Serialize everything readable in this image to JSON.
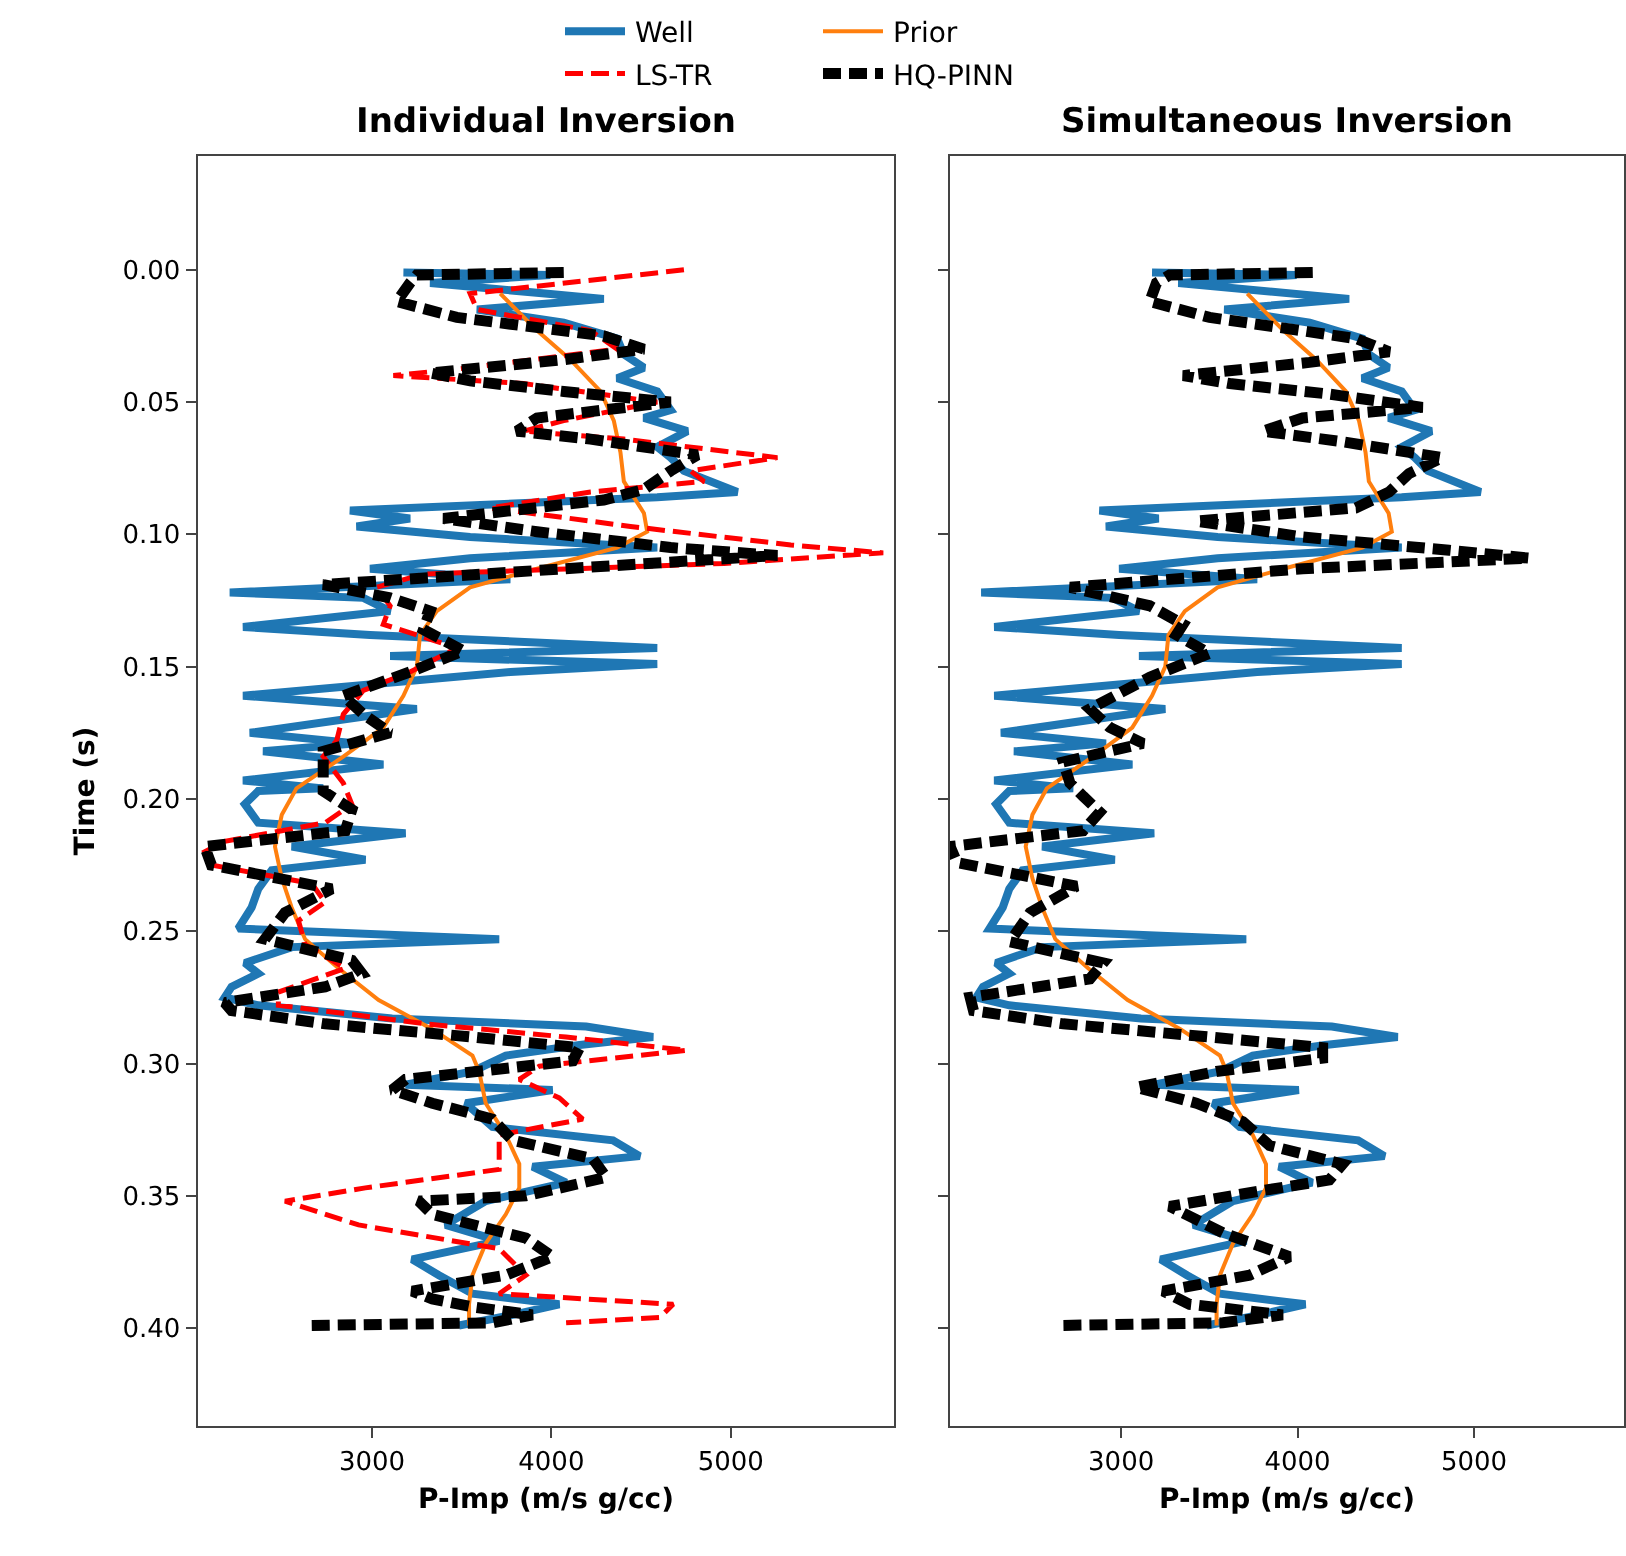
{
  "chart_data": [
    {
      "type": "line",
      "title": "Individual Inversion",
      "xlabel": "P-Imp (m/s g/cc)",
      "ylabel": "Time (s)",
      "legend": "top",
      "xlim": [
        2030,
        5910
      ],
      "xticks": [
        3000,
        4000,
        5000
      ],
      "ylim": [
        0.437,
        -0.043
      ],
      "yticks": [
        {
          "value": 0,
          "label": "0.00"
        },
        {
          "value": 0.05,
          "label": "0.05"
        },
        {
          "value": 0.1,
          "label": "0.10"
        },
        {
          "value": 0.15,
          "label": "0.15"
        },
        {
          "value": 0.2,
          "label": "0.20"
        },
        {
          "value": 0.25,
          "label": "0.25"
        },
        {
          "value": 0.3,
          "label": "0.30"
        },
        {
          "value": 0.35,
          "label": "0.35"
        },
        {
          "value": 0.4,
          "label": "0.40"
        }
      ],
      "series": [
        {
          "name": "Well",
          "color": "#1f77b4",
          "line_style": "solid",
          "x": [
            3175,
            3994,
            3324,
            4292,
            3585,
            4069,
            4367,
            4404,
            4516,
            4367,
            4590,
            4665,
            4516,
            4758,
            4590,
            4665,
            4739,
            5037,
            4590,
            2877,
            3212,
            2914,
            3547,
            4590,
            3547,
            2989,
            3771,
            2207,
            2952,
            3101,
            2281,
            2989,
            4590,
            3101,
            4590,
            3771,
            2281,
            3250,
            2319,
            2914,
            2393,
            3063,
            2281,
            2728,
            2366,
            2291,
            2366,
            3187,
            2553,
            2963,
            2441,
            2366,
            2329,
            2254,
            3709,
            2553,
            2291,
            2366,
            2217,
            2179,
            2366,
            3112,
            4194,
            4567,
            4157,
            3746,
            3560,
            3187,
            4007,
            3522,
            3672,
            4343,
            4492,
            3895,
            4082,
            3634,
            3410,
            3709,
            3224,
            3373,
            3560,
            4044,
            3784,
            3485
          ],
          "values": [
            0.001,
            0.002,
            0.005,
            0.011,
            0.015,
            0.02,
            0.026,
            0.032,
            0.037,
            0.041,
            0.046,
            0.053,
            0.056,
            0.061,
            0.067,
            0.071,
            0.076,
            0.084,
            0.086,
            0.091,
            0.094,
            0.097,
            0.101,
            0.105,
            0.109,
            0.113,
            0.117,
            0.122,
            0.124,
            0.129,
            0.135,
            0.138,
            0.143,
            0.146,
            0.149,
            0.152,
            0.161,
            0.166,
            0.175,
            0.179,
            0.182,
            0.187,
            0.193,
            0.196,
            0.197,
            0.202,
            0.209,
            0.213,
            0.218,
            0.223,
            0.227,
            0.234,
            0.241,
            0.249,
            0.253,
            0.256,
            0.262,
            0.266,
            0.271,
            0.275,
            0.278,
            0.283,
            0.286,
            0.29,
            0.293,
            0.297,
            0.303,
            0.308,
            0.31,
            0.315,
            0.324,
            0.329,
            0.335,
            0.339,
            0.345,
            0.352,
            0.361,
            0.367,
            0.374,
            0.38,
            0.387,
            0.391,
            0.395,
            0.399
          ]
        },
        {
          "name": "Prior",
          "color": "#ff7f0e",
          "line_style": "solid",
          "x": [
            3715,
            3920,
            4106,
            4274,
            4348,
            4385,
            4404,
            4516,
            4534,
            4367,
            3920,
            3547,
            3361,
            3268,
            3250,
            3175,
            3063,
            2840,
            2579,
            2497,
            2459,
            2497,
            2552,
            2627,
            2813,
            3037,
            3336,
            3560,
            3597,
            3634,
            3746,
            3821,
            3821,
            3746,
            3634,
            3560,
            3541,
            3541
          ],
          "values": [
            0.009,
            0.023,
            0.034,
            0.046,
            0.057,
            0.069,
            0.08,
            0.092,
            0.099,
            0.105,
            0.113,
            0.12,
            0.129,
            0.138,
            0.15,
            0.161,
            0.173,
            0.184,
            0.196,
            0.206,
            0.218,
            0.23,
            0.241,
            0.253,
            0.264,
            0.276,
            0.287,
            0.297,
            0.303,
            0.315,
            0.327,
            0.338,
            0.347,
            0.357,
            0.368,
            0.38,
            0.391,
            0.399
          ]
        },
        {
          "name": "LS-TR",
          "color": "#ff0000",
          "line_style": "dashed",
          "x": [
            4739,
            3547,
            3585,
            4218,
            4367,
            3547,
            3119,
            3845,
            4590,
            4069,
            3845,
            4404,
            5260,
            4776,
            4851,
            4218,
            3659,
            4441,
            5335,
            5850,
            4963,
            3287,
            3026,
            3101,
            3063,
            3250,
            3473,
            3212,
            2952,
            2840,
            2803,
            2728,
            2840,
            2888,
            2739,
            2179,
            2067,
            2105,
            2664,
            2739,
            2590,
            2627,
            2851,
            2478,
            2478,
            3298,
            4082,
            4753,
            3933,
            3821,
            4044,
            4175,
            3709,
            3709,
            3709,
            2963,
            2515,
            2925,
            3709,
            3858,
            3709,
            4679,
            4604,
            4082
          ],
          "values": [
            0.0,
            0.009,
            0.015,
            0.023,
            0.03,
            0.037,
            0.04,
            0.043,
            0.05,
            0.057,
            0.061,
            0.064,
            0.071,
            0.076,
            0.08,
            0.084,
            0.09,
            0.097,
            0.104,
            0.107,
            0.111,
            0.115,
            0.12,
            0.127,
            0.134,
            0.138,
            0.143,
            0.152,
            0.159,
            0.168,
            0.178,
            0.184,
            0.194,
            0.202,
            0.209,
            0.216,
            0.22,
            0.225,
            0.232,
            0.239,
            0.246,
            0.255,
            0.264,
            0.273,
            0.278,
            0.285,
            0.29,
            0.295,
            0.301,
            0.306,
            0.313,
            0.321,
            0.327,
            0.334,
            0.34,
            0.347,
            0.352,
            0.361,
            0.37,
            0.38,
            0.387,
            0.391,
            0.396,
            0.398
          ]
        },
        {
          "name": "HQ-PINN",
          "color": "#000000",
          "line_style": "dashed",
          "x": [
            4069,
            3250,
            3212,
            3138,
            3473,
            4292,
            4516,
            4069,
            3324,
            3547,
            4069,
            4665,
            3920,
            3808,
            4218,
            4814,
            4665,
            4516,
            4292,
            3398,
            3920,
            4665,
            5260,
            4069,
            2728,
            3101,
            3324,
            3287,
            3510,
            3212,
            2840,
            2952,
            3101,
            2728,
            2728,
            2728,
            2888,
            2851,
            2067,
            2105,
            2776,
            2515,
            2403,
            2888,
            2944,
            2739,
            2179,
            2217,
            2739,
            3560,
            4157,
            4119,
            3187,
            3112,
            3336,
            3671,
            3783,
            4231,
            4306,
            3858,
            3261,
            3336,
            3858,
            4007,
            3746,
            3224,
            3336,
            3560,
            3895,
            3671,
            2664
          ],
          "values": [
            0.001,
            0.002,
            0.005,
            0.012,
            0.018,
            0.025,
            0.03,
            0.034,
            0.039,
            0.042,
            0.046,
            0.05,
            0.056,
            0.061,
            0.064,
            0.07,
            0.076,
            0.083,
            0.087,
            0.094,
            0.099,
            0.105,
            0.108,
            0.113,
            0.119,
            0.124,
            0.129,
            0.136,
            0.144,
            0.152,
            0.161,
            0.168,
            0.175,
            0.182,
            0.189,
            0.197,
            0.204,
            0.212,
            0.218,
            0.225,
            0.234,
            0.243,
            0.253,
            0.261,
            0.266,
            0.271,
            0.277,
            0.28,
            0.285,
            0.29,
            0.294,
            0.299,
            0.306,
            0.31,
            0.315,
            0.321,
            0.329,
            0.336,
            0.343,
            0.35,
            0.352,
            0.357,
            0.366,
            0.373,
            0.38,
            0.386,
            0.389,
            0.392,
            0.395,
            0.398,
            0.399
          ]
        }
      ]
    },
    {
      "type": "line",
      "title": "Simultaneous Inversion",
      "xlabel": "P-Imp (m/s g/cc)",
      "tick_labels": "x",
      "xlim": [
        2030,
        5850
      ],
      "xticks": [
        3000,
        4000,
        5000
      ],
      "ylim": [
        0.437,
        -0.043
      ],
      "yticks": [
        {
          "value": 0,
          "label": null
        },
        {
          "value": 0.05,
          "label": null
        },
        {
          "value": 0.1,
          "label": null
        },
        {
          "value": 0.15,
          "label": null
        },
        {
          "value": 0.2,
          "label": null
        },
        {
          "value": 0.25,
          "label": null
        },
        {
          "value": 0.3,
          "label": null
        },
        {
          "value": 0.35,
          "label": null
        },
        {
          "value": 0.4,
          "label": null
        }
      ],
      "series": [
        {
          "color": "#1f77b4",
          "line_style": "solid",
          "x": [
            3175,
            3994,
            3324,
            4292,
            3585,
            4069,
            4367,
            4404,
            4516,
            4367,
            4590,
            4665,
            4516,
            4758,
            4590,
            4665,
            4739,
            5037,
            4590,
            2877,
            3212,
            2914,
            3547,
            4590,
            3547,
            2989,
            3771,
            2207,
            2952,
            3101,
            2281,
            2989,
            4590,
            3101,
            4590,
            3771,
            2281,
            3250,
            2319,
            2914,
            2393,
            3063,
            2281,
            2728,
            2366,
            2291,
            2366,
            3187,
            2553,
            2963,
            2441,
            2366,
            2329,
            2254,
            3709,
            2553,
            2291,
            2366,
            2217,
            2179,
            2366,
            3112,
            4194,
            4567,
            4157,
            3746,
            3560,
            3187,
            4007,
            3522,
            3672,
            4343,
            4492,
            3895,
            4082,
            3634,
            3410,
            3709,
            3224,
            3373,
            3560,
            4044,
            3784,
            3485
          ],
          "values": [
            0.001,
            0.002,
            0.005,
            0.011,
            0.015,
            0.02,
            0.026,
            0.032,
            0.037,
            0.041,
            0.046,
            0.053,
            0.056,
            0.061,
            0.067,
            0.071,
            0.076,
            0.084,
            0.086,
            0.091,
            0.094,
            0.097,
            0.101,
            0.105,
            0.109,
            0.113,
            0.117,
            0.122,
            0.124,
            0.129,
            0.135,
            0.138,
            0.143,
            0.146,
            0.149,
            0.152,
            0.161,
            0.166,
            0.175,
            0.179,
            0.182,
            0.187,
            0.193,
            0.196,
            0.197,
            0.202,
            0.209,
            0.213,
            0.218,
            0.223,
            0.227,
            0.234,
            0.241,
            0.249,
            0.253,
            0.256,
            0.262,
            0.266,
            0.271,
            0.275,
            0.278,
            0.283,
            0.286,
            0.29,
            0.293,
            0.297,
            0.303,
            0.308,
            0.31,
            0.315,
            0.324,
            0.329,
            0.335,
            0.339,
            0.345,
            0.352,
            0.361,
            0.367,
            0.374,
            0.38,
            0.387,
            0.391,
            0.395,
            0.399
          ]
        },
        {
          "color": "#ff7f0e",
          "line_style": "solid",
          "x": [
            3715,
            3920,
            4106,
            4274,
            4348,
            4385,
            4404,
            4516,
            4534,
            4367,
            3920,
            3547,
            3361,
            3268,
            3250,
            3175,
            3063,
            2840,
            2579,
            2497,
            2459,
            2497,
            2552,
            2627,
            2813,
            3037,
            3336,
            3560,
            3597,
            3634,
            3746,
            3821,
            3821,
            3746,
            3634,
            3560,
            3541,
            3541
          ],
          "values": [
            0.009,
            0.023,
            0.034,
            0.046,
            0.057,
            0.069,
            0.08,
            0.092,
            0.099,
            0.105,
            0.113,
            0.12,
            0.129,
            0.138,
            0.15,
            0.161,
            0.173,
            0.184,
            0.196,
            0.206,
            0.218,
            0.23,
            0.241,
            0.253,
            0.264,
            0.276,
            0.287,
            0.297,
            0.303,
            0.315,
            0.327,
            0.338,
            0.347,
            0.357,
            0.368,
            0.38,
            0.391,
            0.399
          ]
        },
        {
          "color": "#000000",
          "line_style": "dashed",
          "x": [
            4086,
            3275,
            3200,
            3162,
            3501,
            4331,
            4519,
            4067,
            3351,
            3615,
            4180,
            4708,
            4029,
            3803,
            4255,
            4821,
            4632,
            4519,
            4331,
            3426,
            4029,
            4859,
            5311,
            4029,
            2710,
            3162,
            3351,
            3313,
            3501,
            3162,
            2823,
            2936,
            3124,
            2672,
            2710,
            2785,
            2879,
            2785,
            2031,
            2069,
            2747,
            2484,
            2370,
            2898,
            2823,
            2144,
            2163,
            2672,
            3501,
            4142,
            4142,
            3539,
            3087,
            3426,
            3690,
            3841,
            4255,
            4180,
            3803,
            3275,
            3577,
            3954,
            3728,
            3238,
            3388,
            3916,
            3577,
            2653
          ],
          "values": [
            0.001,
            0.002,
            0.005,
            0.012,
            0.018,
            0.026,
            0.031,
            0.035,
            0.04,
            0.043,
            0.047,
            0.052,
            0.056,
            0.061,
            0.065,
            0.071,
            0.077,
            0.084,
            0.09,
            0.095,
            0.101,
            0.106,
            0.109,
            0.113,
            0.12,
            0.127,
            0.134,
            0.138,
            0.145,
            0.154,
            0.166,
            0.173,
            0.179,
            0.186,
            0.194,
            0.199,
            0.205,
            0.212,
            0.218,
            0.224,
            0.233,
            0.243,
            0.254,
            0.262,
            0.268,
            0.275,
            0.28,
            0.285,
            0.29,
            0.294,
            0.298,
            0.303,
            0.309,
            0.315,
            0.322,
            0.331,
            0.338,
            0.344,
            0.348,
            0.354,
            0.364,
            0.373,
            0.38,
            0.386,
            0.391,
            0.395,
            0.398,
            0.399
          ]
        }
      ]
    }
  ]
}
